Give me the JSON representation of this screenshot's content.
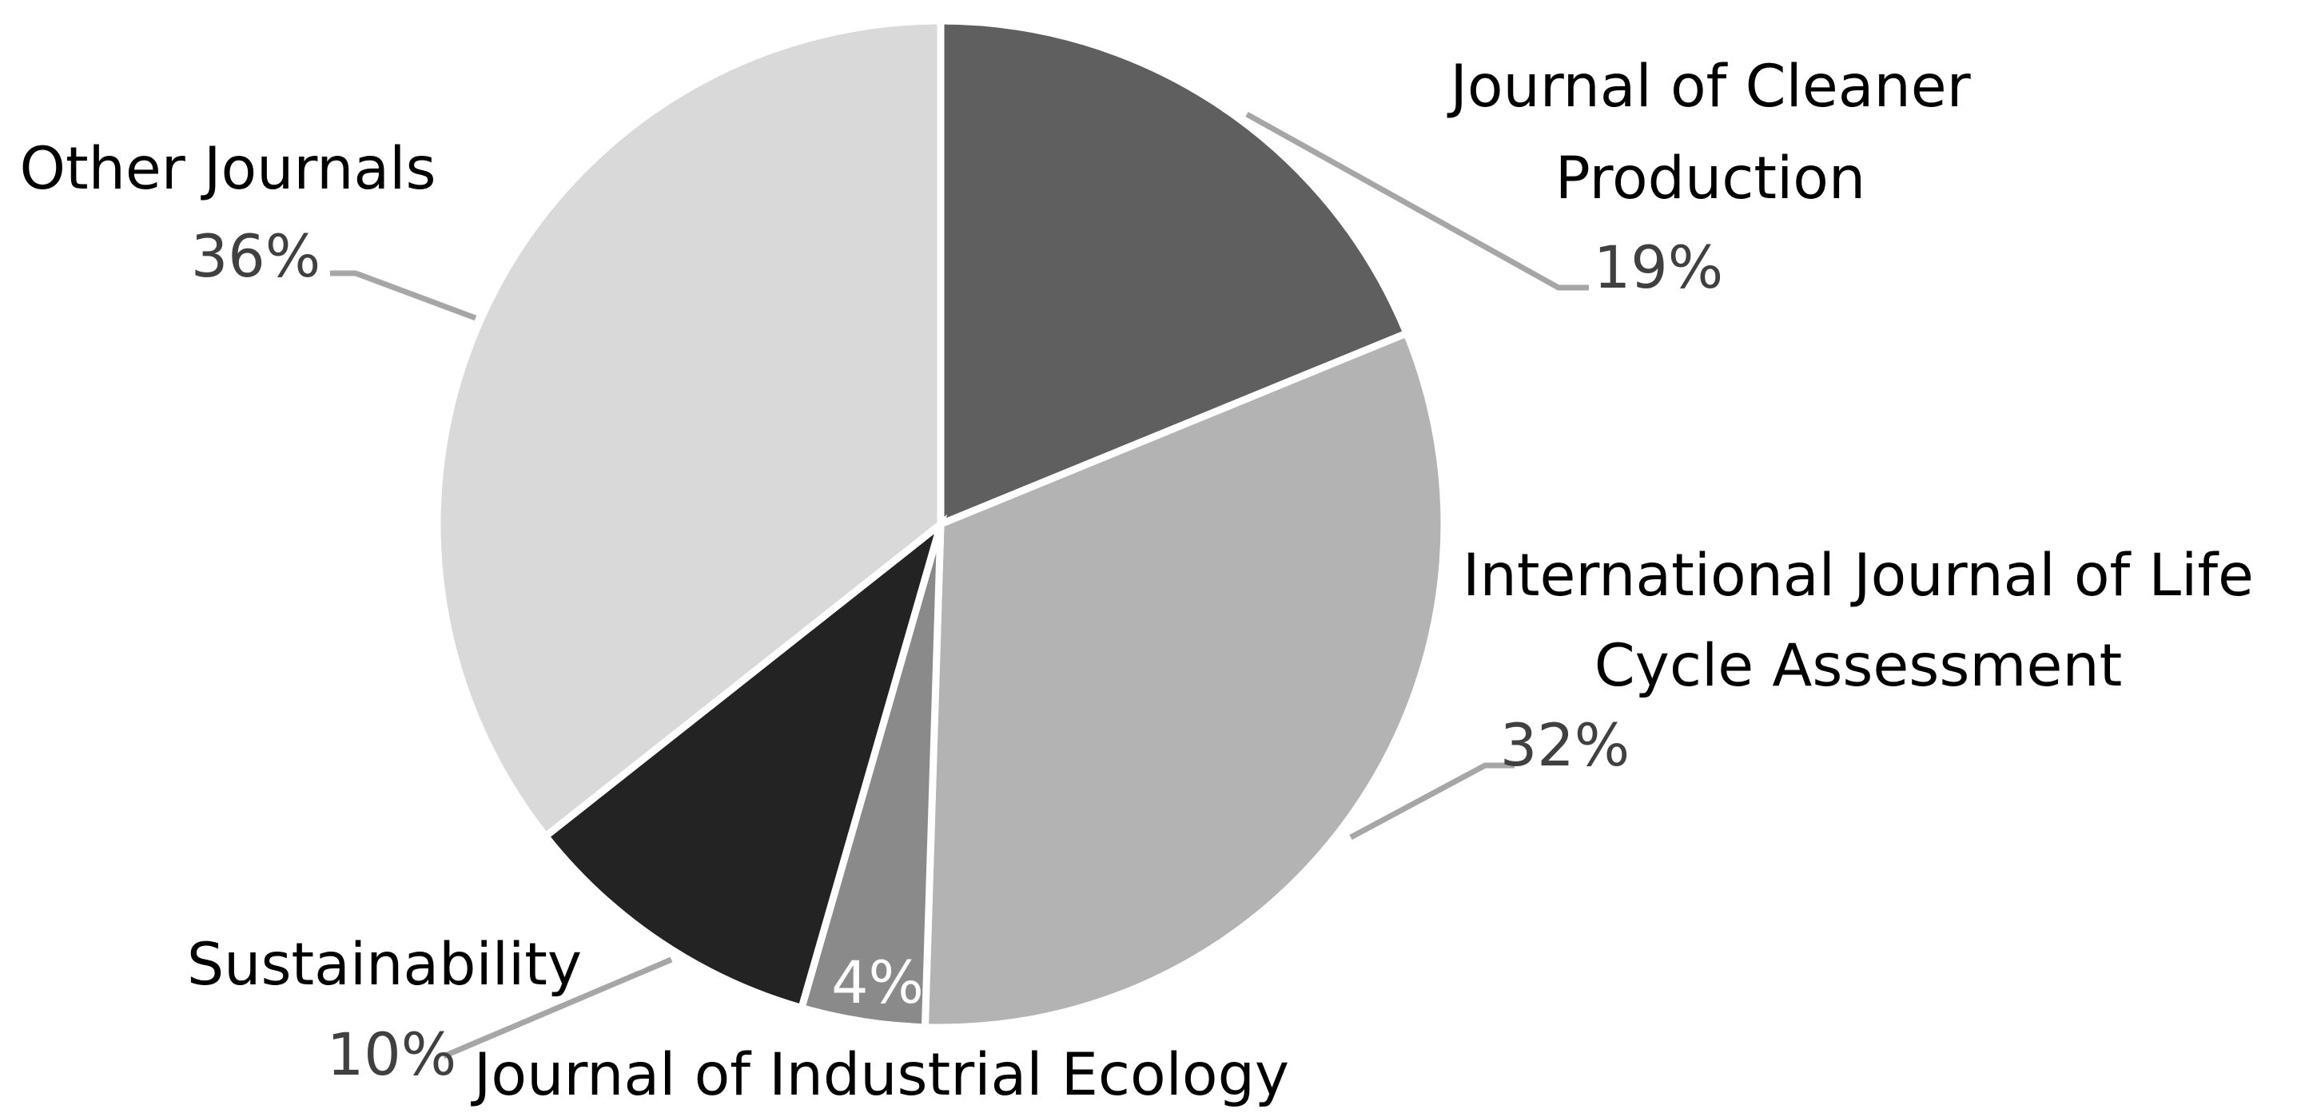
{
  "chart_data": {
    "type": "pie",
    "start_angle_deg": 0,
    "direction": "clockwise",
    "slices": [
      {
        "name_lines": [
          "Journal of Cleaner",
          "Production"
        ],
        "value": 19,
        "label": "19%",
        "color": "#5f5f5f"
      },
      {
        "name_lines": [
          "International Journal of Life",
          "Cycle Assessment"
        ],
        "value": 32,
        "label": "32%",
        "color": "#b3b3b3"
      },
      {
        "name_lines": [
          "Journal of Industrial Ecology"
        ],
        "value": 4,
        "label": "4%",
        "color": "#8a8a8a"
      },
      {
        "name_lines": [
          "Sustainability"
        ],
        "value": 10,
        "label": "10%",
        "color": "#232323"
      },
      {
        "name_lines": [
          "Other Journals"
        ],
        "value": 36,
        "label": "36%",
        "color": "#d9d9d9"
      }
    ]
  }
}
